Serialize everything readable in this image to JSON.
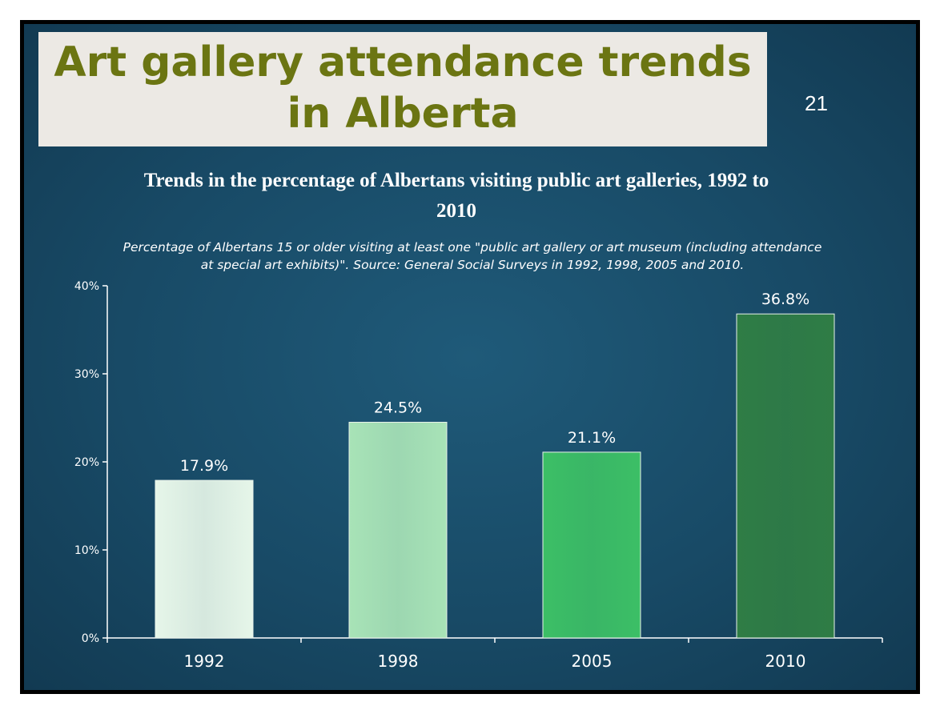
{
  "slide": {
    "title": "Art gallery attendance trends in Alberta",
    "number": "21",
    "background_color": "#184a66",
    "title_color": "#6b7512"
  },
  "chart_data": {
    "type": "bar",
    "title": "Trends in the percentage of Albertans visiting public art galleries, 1992 to 2010",
    "subtitle": "Percentage of Albertans 15 or older visiting at least one \"public art gallery or art museum (including attendance at special art exhibits)\". Source: General Social Surveys in 1992, 1998, 2005 and 2010.",
    "categories": [
      "1992",
      "1998",
      "2005",
      "2010"
    ],
    "values": [
      17.9,
      24.5,
      21.1,
      36.8
    ],
    "data_labels": [
      "17.9%",
      "24.5%",
      "21.1%",
      "36.8%"
    ],
    "bar_colors": [
      "#e6f6e9",
      "#a8e3b7",
      "#3cbf66",
      "#2f7d45"
    ],
    "ylim": [
      0,
      40
    ],
    "yticks": [
      0,
      10,
      20,
      30,
      40
    ],
    "ytick_labels": [
      "0%",
      "10%",
      "20%",
      "30%",
      "40%"
    ],
    "xlabel": "",
    "ylabel": "",
    "grid": false,
    "legend": "none"
  }
}
